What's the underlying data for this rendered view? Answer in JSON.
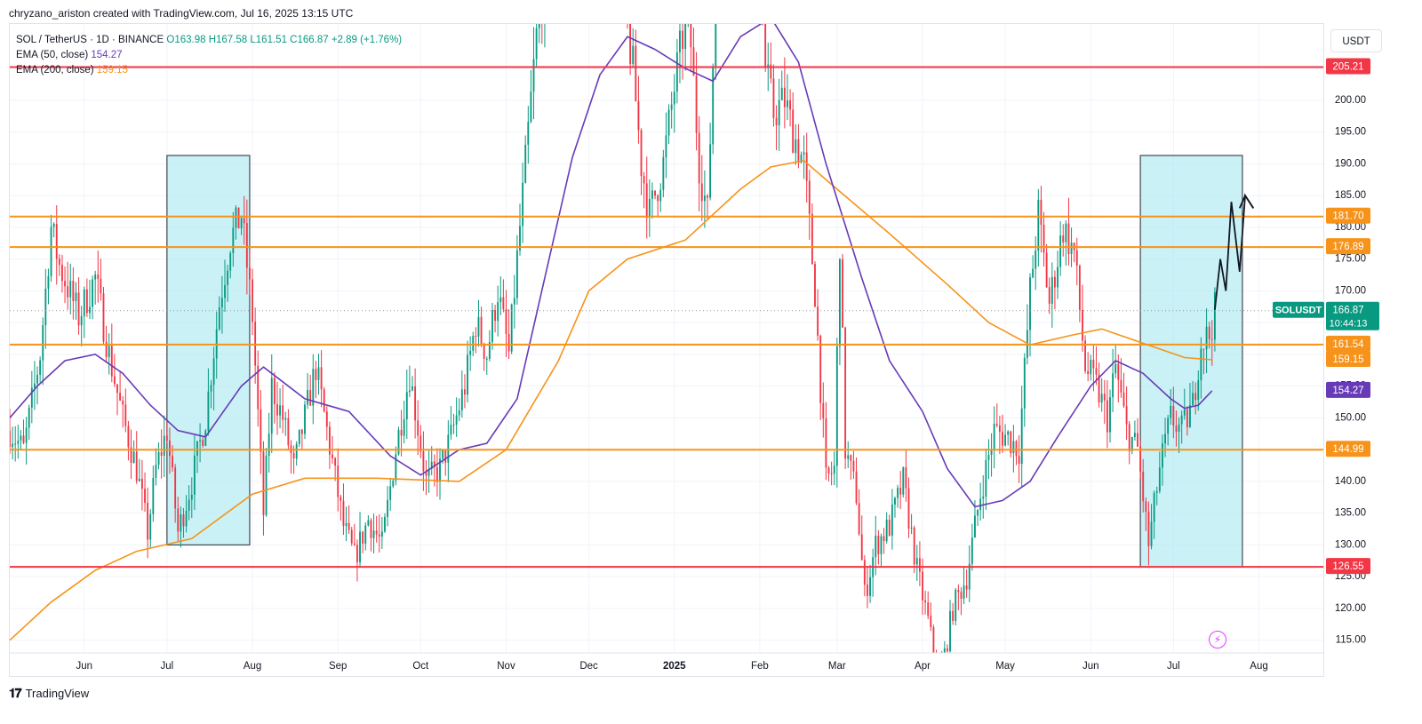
{
  "header": {
    "credit": "chryzano_ariston created with TradingView.com, Jul 16, 2025 13:15 UTC"
  },
  "legend": {
    "symbol": "SOL / TetherUS · 1D · BINANCE",
    "open": "O163.98",
    "high": "H167.58",
    "low": "L161.51",
    "close": "C166.87",
    "change": "+2.89 (+1.76%)",
    "ema50_label": "EMA (50, close)",
    "ema50_value": "154.27",
    "ema200_label": "EMA (200, close)",
    "ema200_value": "159.15"
  },
  "unit_button": "USDT",
  "footer": {
    "brand": "TradingView"
  },
  "colors": {
    "up": "#089981",
    "down": "#f23645",
    "ema50": "#673ab7",
    "ema200": "#f7931a",
    "resistance": "#f23645",
    "level": "#f7931a",
    "box_fill": "#b2ebf2",
    "axis_text": "#131722",
    "grid": "#f0f3fa"
  },
  "chart_data": {
    "type": "candlestick",
    "symbol": "SOLUSDT",
    "timeframe": "1D",
    "ylim": [
      113,
      212
    ],
    "x_range": [
      "2024-05-05",
      "2025-08-25"
    ],
    "y_ticks": [
      115,
      120,
      125,
      130,
      135,
      140,
      145,
      150,
      155,
      160,
      165,
      170,
      175,
      180,
      185,
      190,
      195,
      200,
      205
    ],
    "y_tick_labels": [
      "115.00",
      "120.00",
      "125.00",
      "130.00",
      "135.00",
      "140.00",
      "145.00",
      "150.00",
      "155.00",
      "160.00",
      "165.00",
      "170.00",
      "175.00",
      "180.00",
      "185.00",
      "190.00",
      "195.00",
      "200.00",
      "205.00"
    ],
    "x_ticks": [
      {
        "label": "Jun",
        "date": "2024-06-01"
      },
      {
        "label": "Jul",
        "date": "2024-07-01"
      },
      {
        "label": "Aug",
        "date": "2024-08-01"
      },
      {
        "label": "Sep",
        "date": "2024-09-01"
      },
      {
        "label": "Oct",
        "date": "2024-10-01"
      },
      {
        "label": "Nov",
        "date": "2024-11-01"
      },
      {
        "label": "Dec",
        "date": "2024-12-01"
      },
      {
        "label": "2025",
        "date": "2025-01-01"
      },
      {
        "label": "Feb",
        "date": "2025-02-01"
      },
      {
        "label": "Mar",
        "date": "2025-03-01"
      },
      {
        "label": "Apr",
        "date": "2025-04-01"
      },
      {
        "label": "May",
        "date": "2025-05-01"
      },
      {
        "label": "Jun",
        "date": "2025-06-01"
      },
      {
        "label": "Jul",
        "date": "2025-07-01"
      },
      {
        "label": "Aug",
        "date": "2025-08-01"
      }
    ],
    "horizontal_levels": [
      {
        "value": 205.21,
        "label": "205.21",
        "color": "#f23645"
      },
      {
        "value": 181.7,
        "label": "181.70",
        "color": "#f7931a"
      },
      {
        "value": 176.89,
        "label": "176.89",
        "color": "#f7931a"
      },
      {
        "value": 161.54,
        "label": "161.54",
        "color": "#f7931a"
      },
      {
        "value": 144.99,
        "label": "144.99",
        "color": "#f7931a"
      },
      {
        "value": 126.55,
        "label": "126.55",
        "color": "#f23645"
      }
    ],
    "price_tags": [
      {
        "value": 166.87,
        "name": "SOLUSDT",
        "label": "166.87",
        "countdown": "10:44:13",
        "color": "#089981"
      },
      {
        "value": 159.15,
        "label": "159.15",
        "color": "#f7931a"
      },
      {
        "value": 154.27,
        "label": "154.27",
        "color": "#673ab7"
      }
    ],
    "last_price": 166.87,
    "boxes": [
      {
        "start": "2024-07-01",
        "end": "2024-07-31",
        "top": 191.3,
        "bottom": 130.0
      },
      {
        "start": "2025-06-19",
        "end": "2025-07-26",
        "top": 191.3,
        "bottom": 126.55
      }
    ],
    "projection_path": [
      {
        "date": "2025-07-16",
        "value": 167
      },
      {
        "date": "2025-07-18",
        "value": 175
      },
      {
        "date": "2025-07-20",
        "value": 170
      },
      {
        "date": "2025-07-22",
        "value": 184
      },
      {
        "date": "2025-07-25",
        "value": 173
      },
      {
        "date": "2025-07-27",
        "value": 185
      },
      {
        "date": "2025-07-30",
        "value": 183
      }
    ],
    "projection_arrowhead": [
      {
        "date": "2025-07-25",
        "value": 183
      },
      {
        "date": "2025-07-27",
        "value": 185
      },
      {
        "date": "2025-07-30",
        "value": 183
      }
    ],
    "ema200_points": [
      {
        "date": "2024-05-05",
        "value": 115
      },
      {
        "date": "2024-05-20",
        "value": 121
      },
      {
        "date": "2024-06-05",
        "value": 126
      },
      {
        "date": "2024-06-20",
        "value": 129
      },
      {
        "date": "2024-07-10",
        "value": 131
      },
      {
        "date": "2024-08-01",
        "value": 138
      },
      {
        "date": "2024-08-20",
        "value": 140.5
      },
      {
        "date": "2024-09-15",
        "value": 140.5
      },
      {
        "date": "2024-10-15",
        "value": 140
      },
      {
        "date": "2024-11-01",
        "value": 145
      },
      {
        "date": "2024-11-20",
        "value": 159
      },
      {
        "date": "2024-12-01",
        "value": 170
      },
      {
        "date": "2024-12-15",
        "value": 175
      },
      {
        "date": "2025-01-05",
        "value": 178
      },
      {
        "date": "2025-01-25",
        "value": 186
      },
      {
        "date": "2025-02-05",
        "value": 189.5
      },
      {
        "date": "2025-02-17",
        "value": 190.5
      },
      {
        "date": "2025-03-01",
        "value": 186
      },
      {
        "date": "2025-03-20",
        "value": 179
      },
      {
        "date": "2025-04-10",
        "value": 171
      },
      {
        "date": "2025-04-25",
        "value": 165
      },
      {
        "date": "2025-05-10",
        "value": 161.5
      },
      {
        "date": "2025-05-25",
        "value": 163
      },
      {
        "date": "2025-06-05",
        "value": 164
      },
      {
        "date": "2025-06-25",
        "value": 161
      },
      {
        "date": "2025-07-05",
        "value": 159.5
      },
      {
        "date": "2025-07-15",
        "value": 159.15
      }
    ],
    "ema50_points": [
      {
        "date": "2024-05-05",
        "value": 150
      },
      {
        "date": "2024-05-15",
        "value": 155
      },
      {
        "date": "2024-05-25",
        "value": 159
      },
      {
        "date": "2024-06-05",
        "value": 160
      },
      {
        "date": "2024-06-15",
        "value": 157
      },
      {
        "date": "2024-06-25",
        "value": 152
      },
      {
        "date": "2024-07-05",
        "value": 148
      },
      {
        "date": "2024-07-15",
        "value": 147
      },
      {
        "date": "2024-07-28",
        "value": 155
      },
      {
        "date": "2024-08-05",
        "value": 158
      },
      {
        "date": "2024-08-20",
        "value": 153
      },
      {
        "date": "2024-09-05",
        "value": 151
      },
      {
        "date": "2024-09-20",
        "value": 144
      },
      {
        "date": "2024-10-01",
        "value": 141
      },
      {
        "date": "2024-10-15",
        "value": 145
      },
      {
        "date": "2024-10-25",
        "value": 146
      },
      {
        "date": "2024-11-05",
        "value": 153
      },
      {
        "date": "2024-11-15",
        "value": 172
      },
      {
        "date": "2024-11-25",
        "value": 191
      },
      {
        "date": "2024-12-05",
        "value": 204
      },
      {
        "date": "2024-12-15",
        "value": 210
      },
      {
        "date": "2024-12-25",
        "value": 208
      },
      {
        "date": "2025-01-05",
        "value": 205
      },
      {
        "date": "2025-01-15",
        "value": 203
      },
      {
        "date": "2025-01-25",
        "value": 210
      },
      {
        "date": "2025-02-05",
        "value": 213
      },
      {
        "date": "2025-02-15",
        "value": 206
      },
      {
        "date": "2025-02-25",
        "value": 190
      },
      {
        "date": "2025-03-10",
        "value": 172
      },
      {
        "date": "2025-03-20",
        "value": 159
      },
      {
        "date": "2025-04-01",
        "value": 151
      },
      {
        "date": "2025-04-10",
        "value": 142
      },
      {
        "date": "2025-04-20",
        "value": 136
      },
      {
        "date": "2025-04-30",
        "value": 137
      },
      {
        "date": "2025-05-10",
        "value": 140
      },
      {
        "date": "2025-05-20",
        "value": 147
      },
      {
        "date": "2025-06-01",
        "value": 155
      },
      {
        "date": "2025-06-10",
        "value": 159
      },
      {
        "date": "2025-06-20",
        "value": 157
      },
      {
        "date": "2025-06-30",
        "value": 153
      },
      {
        "date": "2025-07-05",
        "value": 151.5
      },
      {
        "date": "2025-07-10",
        "value": 152
      },
      {
        "date": "2025-07-15",
        "value": 154.27
      }
    ],
    "price_path": [
      {
        "date": "2024-05-05",
        "value": 148
      },
      {
        "date": "2024-05-10",
        "value": 145
      },
      {
        "date": "2024-05-16",
        "value": 160
      },
      {
        "date": "2024-05-20",
        "value": 180
      },
      {
        "date": "2024-05-23",
        "value": 174
      },
      {
        "date": "2024-05-30",
        "value": 166
      },
      {
        "date": "2024-06-05",
        "value": 172
      },
      {
        "date": "2024-06-10",
        "value": 160
      },
      {
        "date": "2024-06-15",
        "value": 150
      },
      {
        "date": "2024-06-20",
        "value": 142
      },
      {
        "date": "2024-06-24",
        "value": 132
      },
      {
        "date": "2024-06-27",
        "value": 142
      },
      {
        "date": "2024-07-01",
        "value": 148
      },
      {
        "date": "2024-07-05",
        "value": 132
      },
      {
        "date": "2024-07-10",
        "value": 140
      },
      {
        "date": "2024-07-15",
        "value": 150
      },
      {
        "date": "2024-07-20",
        "value": 168
      },
      {
        "date": "2024-07-24",
        "value": 178
      },
      {
        "date": "2024-07-28",
        "value": 182
      },
      {
        "date": "2024-08-01",
        "value": 166
      },
      {
        "date": "2024-08-05",
        "value": 135
      },
      {
        "date": "2024-08-08",
        "value": 155
      },
      {
        "date": "2024-08-12",
        "value": 150
      },
      {
        "date": "2024-08-16",
        "value": 142
      },
      {
        "date": "2024-08-20",
        "value": 150
      },
      {
        "date": "2024-08-24",
        "value": 158
      },
      {
        "date": "2024-08-28",
        "value": 148
      },
      {
        "date": "2024-09-03",
        "value": 133
      },
      {
        "date": "2024-09-07",
        "value": 128
      },
      {
        "date": "2024-09-12",
        "value": 134
      },
      {
        "date": "2024-09-17",
        "value": 130
      },
      {
        "date": "2024-09-22",
        "value": 145
      },
      {
        "date": "2024-09-27",
        "value": 157
      },
      {
        "date": "2024-10-03",
        "value": 140
      },
      {
        "date": "2024-10-08",
        "value": 142
      },
      {
        "date": "2024-10-12",
        "value": 147
      },
      {
        "date": "2024-10-17",
        "value": 155
      },
      {
        "date": "2024-10-21",
        "value": 165
      },
      {
        "date": "2024-10-25",
        "value": 160
      },
      {
        "date": "2024-10-29",
        "value": 170
      },
      {
        "date": "2024-11-02",
        "value": 160
      },
      {
        "date": "2024-11-06",
        "value": 180
      },
      {
        "date": "2024-11-12",
        "value": 210
      },
      {
        "date": "2024-11-17",
        "value": 225
      },
      {
        "date": "2024-11-22",
        "value": 250
      },
      {
        "date": "2024-11-29",
        "value": 235
      },
      {
        "date": "2024-12-04",
        "value": 230
      },
      {
        "date": "2024-12-08",
        "value": 225
      },
      {
        "date": "2024-12-12",
        "value": 220
      },
      {
        "date": "2024-12-17",
        "value": 205
      },
      {
        "date": "2024-12-20",
        "value": 190
      },
      {
        "date": "2024-12-23",
        "value": 182
      },
      {
        "date": "2024-12-28",
        "value": 190
      },
      {
        "date": "2025-01-02",
        "value": 205
      },
      {
        "date": "2025-01-06",
        "value": 215
      },
      {
        "date": "2025-01-10",
        "value": 190
      },
      {
        "date": "2025-01-13",
        "value": 182
      },
      {
        "date": "2025-01-17",
        "value": 230
      },
      {
        "date": "2025-01-20",
        "value": 255
      },
      {
        "date": "2025-01-25",
        "value": 250
      },
      {
        "date": "2025-01-30",
        "value": 235
      },
      {
        "date": "2025-02-03",
        "value": 205
      },
      {
        "date": "2025-02-06",
        "value": 198
      },
      {
        "date": "2025-02-10",
        "value": 200
      },
      {
        "date": "2025-02-13",
        "value": 195
      },
      {
        "date": "2025-02-17",
        "value": 190
      },
      {
        "date": "2025-02-21",
        "value": 170
      },
      {
        "date": "2025-02-25",
        "value": 140
      },
      {
        "date": "2025-02-28",
        "value": 142
      },
      {
        "date": "2025-03-02",
        "value": 178
      },
      {
        "date": "2025-03-04",
        "value": 145
      },
      {
        "date": "2025-03-08",
        "value": 138
      },
      {
        "date": "2025-03-11",
        "value": 122
      },
      {
        "date": "2025-03-15",
        "value": 130
      },
      {
        "date": "2025-03-20",
        "value": 133
      },
      {
        "date": "2025-03-25",
        "value": 140
      },
      {
        "date": "2025-03-30",
        "value": 126
      },
      {
        "date": "2025-04-03",
        "value": 118
      },
      {
        "date": "2025-04-07",
        "value": 108
      },
      {
        "date": "2025-04-12",
        "value": 120
      },
      {
        "date": "2025-04-17",
        "value": 125
      },
      {
        "date": "2025-04-22",
        "value": 138
      },
      {
        "date": "2025-04-27",
        "value": 148
      },
      {
        "date": "2025-05-02",
        "value": 147
      },
      {
        "date": "2025-05-06",
        "value": 145
      },
      {
        "date": "2025-05-10",
        "value": 170
      },
      {
        "date": "2025-05-13",
        "value": 182
      },
      {
        "date": "2025-05-17",
        "value": 168
      },
      {
        "date": "2025-05-22",
        "value": 180
      },
      {
        "date": "2025-05-26",
        "value": 176
      },
      {
        "date": "2025-05-30",
        "value": 158
      },
      {
        "date": "2025-06-03",
        "value": 155
      },
      {
        "date": "2025-06-07",
        "value": 150
      },
      {
        "date": "2025-06-10",
        "value": 158
      },
      {
        "date": "2025-06-14",
        "value": 148
      },
      {
        "date": "2025-06-18",
        "value": 145
      },
      {
        "date": "2025-06-22",
        "value": 130
      },
      {
        "date": "2025-06-26",
        "value": 142
      },
      {
        "date": "2025-06-30",
        "value": 150
      },
      {
        "date": "2025-07-04",
        "value": 148
      },
      {
        "date": "2025-07-08",
        "value": 152
      },
      {
        "date": "2025-07-11",
        "value": 162
      },
      {
        "date": "2025-07-14",
        "value": 163
      },
      {
        "date": "2025-07-16",
        "value": 166.87
      }
    ]
  }
}
